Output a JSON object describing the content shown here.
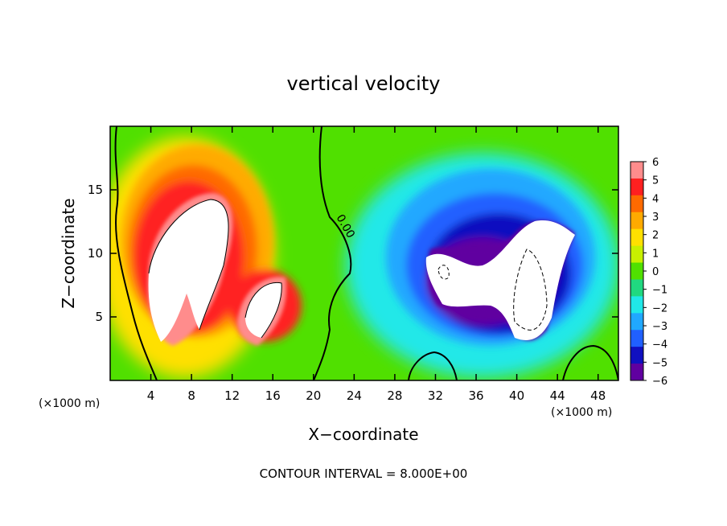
{
  "chart_data": {
    "type": "heatmap",
    "title": "vertical velocity",
    "xlabel": "X−coordinate",
    "ylabel": "Z−coordinate",
    "x_unit_left": "(×1000 m)",
    "x_unit_right": "(×1000 m)",
    "footer": "CONTOUR INTERVAL = 8.000E+00",
    "contour_label": "0.00",
    "xlim": [
      0,
      50
    ],
    "ylim": [
      0,
      20
    ],
    "x_ticks": [
      4,
      8,
      12,
      16,
      20,
      24,
      28,
      32,
      36,
      40,
      44,
      48
    ],
    "y_ticks": [
      5,
      10,
      15
    ],
    "colorbar": {
      "range": [
        -6,
        6
      ],
      "ticks": [
        "6",
        "5",
        "4",
        "3",
        "2",
        "1",
        "0",
        "−1",
        "−2",
        "−3",
        "−4",
        "−5",
        "−6"
      ],
      "colors": [
        "#ff8c8c",
        "#ff2020",
        "#ff6a00",
        "#ffaa00",
        "#ffe000",
        "#c8f000",
        "#50e000",
        "#20d880",
        "#20e8e8",
        "#20a8ff",
        "#2060ff",
        "#1010c0",
        "#6000a0"
      ]
    },
    "updraft_cores": [
      {
        "x": 9.5,
        "z": 11,
        "w": 8
      },
      {
        "x": 13.5,
        "z": 7,
        "w": 7
      }
    ],
    "downdraft_cores": [
      {
        "x": 36,
        "z": 9,
        "w": -8
      },
      {
        "x": 41.5,
        "z": 8,
        "w": -9
      }
    ]
  }
}
